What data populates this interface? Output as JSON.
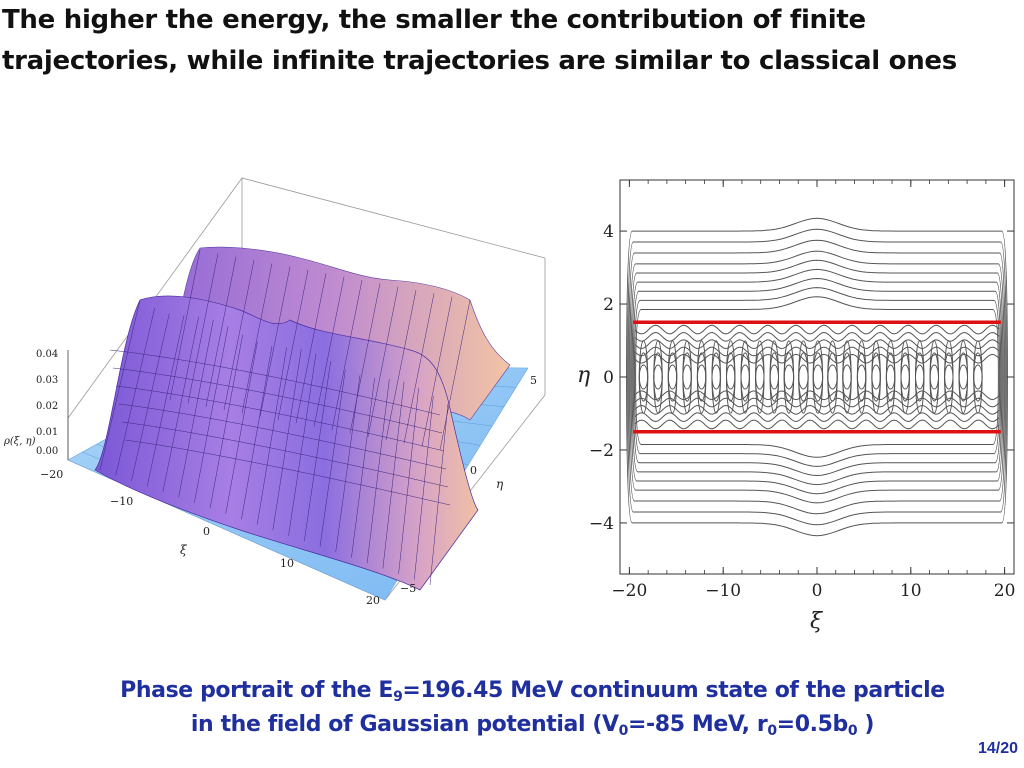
{
  "slide": {
    "title_line1": "The higher the energy, the smaller the contribution of finite",
    "title_line2": "trajectories, while infinite trajectories are similar to classical ones",
    "page_current": "14",
    "page_separator": "/",
    "page_total": "20"
  },
  "caption": {
    "line1_a": "Phase portrait of the E",
    "line1_sub": "9",
    "line1_b": "=196.45 MeV continuum state of the particle",
    "line2_a": "in the field of Gaussian potential (V",
    "line2_sub1": "0",
    "line2_b": "=-85 MeV, r",
    "line2_sub2": "0",
    "line2_c": "=0.5b",
    "line2_sub3": "0",
    "line2_d": " )"
  },
  "chart_data": [
    {
      "type": "surface",
      "zlabel": "ρ(ξ, η)",
      "xlabel": "ξ",
      "ylabel": "η",
      "z_ticks": [
        "0.00",
        "0.01",
        "0.02",
        "0.03",
        "0.04"
      ],
      "x_ticks": [
        "−20",
        "−10",
        "0",
        "10",
        "20"
      ],
      "y_ticks": [
        "−5",
        "0",
        "5"
      ],
      "colors": {
        "ridge": "#9a6ee0",
        "ridge_edge": "#e8b9a3",
        "floor": "#8fc6f5"
      }
    },
    {
      "type": "contour",
      "xlabel": "ξ",
      "ylabel": "η",
      "xlim": [
        -21,
        21
      ],
      "ylim": [
        -5.4,
        5.4
      ],
      "x_ticks": [
        -20,
        -10,
        0,
        10,
        20
      ],
      "y_ticks": [
        -4,
        -2,
        0,
        2,
        4
      ],
      "x_tick_labels": [
        "−20",
        "−10",
        "0",
        "10",
        "20"
      ],
      "y_tick_labels": [
        "−4",
        "−2",
        "0",
        "2",
        "4"
      ],
      "reference_lines": [
        {
          "eta": 1.5,
          "color": "#dd1111"
        },
        {
          "eta": -1.5,
          "color": "#dd1111"
        }
      ],
      "contour_color": "#555555"
    }
  ]
}
